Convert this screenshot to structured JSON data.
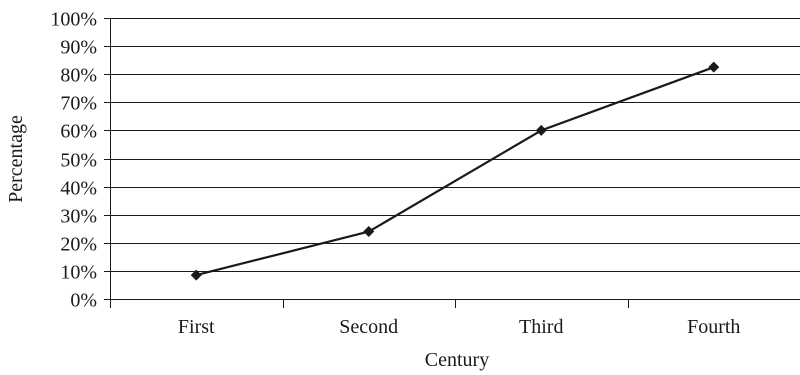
{
  "chart_data": {
    "type": "line",
    "title": "",
    "xlabel": "Century",
    "ylabel": "Percentage",
    "categories": [
      "First",
      "Second",
      "Third",
      "Fourth"
    ],
    "series": [
      {
        "values": [
          8.5,
          24,
          60,
          82.5
        ]
      }
    ],
    "ylim": [
      0,
      100
    ],
    "yticks": [
      0,
      10,
      20,
      30,
      40,
      50,
      60,
      70,
      80,
      90,
      100
    ],
    "ytick_suffix": "%",
    "grid": "horizontal",
    "legend": "none",
    "marker": "diamond",
    "colors": {
      "line": "#1a1a1a",
      "grid": "#1a1a1a",
      "text": "#1a1a1a"
    }
  }
}
